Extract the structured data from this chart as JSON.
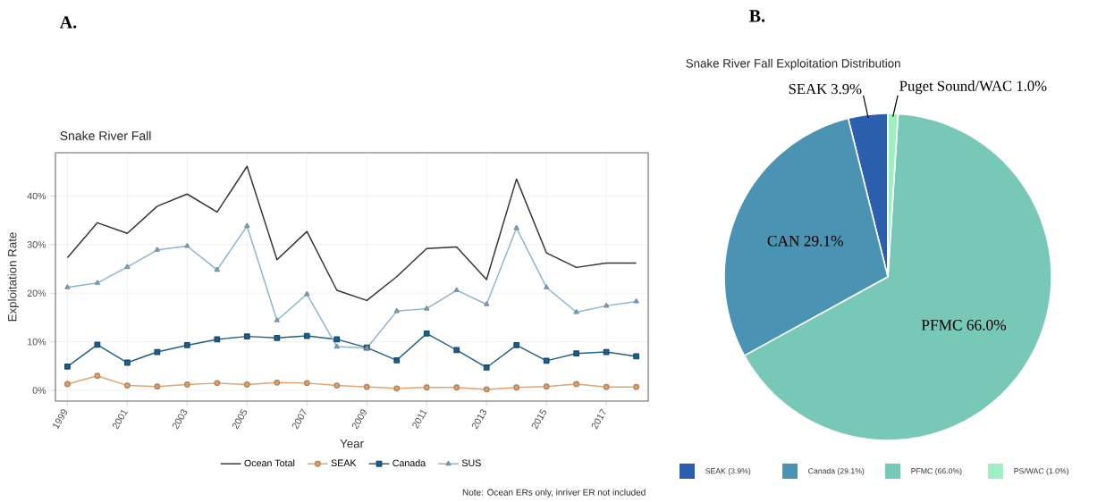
{
  "chart_data": [
    {
      "type": "line",
      "title": "Snake River Fall",
      "xlabel": "Year",
      "ylabel": "Exploitation Rate",
      "annotations": [
        "A.",
        "Note: Ocean ERs only, inriver ER not included"
      ],
      "x": [
        1999,
        2000,
        2001,
        2002,
        2003,
        2004,
        2005,
        2006,
        2007,
        2008,
        2009,
        2010,
        2011,
        2012,
        2013,
        2014,
        2015,
        2016,
        2017,
        2018
      ],
      "series": [
        {
          "name": "Ocean Total",
          "color": "#333333",
          "marker": "none",
          "values": [
            27.3,
            34.5,
            32.3,
            37.9,
            40.4,
            36.7,
            46.1,
            26.9,
            32.7,
            20.6,
            18.5,
            23.4,
            29.2,
            29.5,
            22.8,
            43.5,
            28.3,
            25.3,
            26.2,
            26.2
          ]
        },
        {
          "name": "SEAK",
          "color": "#e0a36e",
          "marker": "circle",
          "values": [
            1.3,
            3.0,
            1.0,
            0.8,
            1.2,
            1.5,
            1.2,
            1.6,
            1.5,
            1.0,
            0.7,
            0.4,
            0.6,
            0.6,
            0.2,
            0.6,
            0.8,
            1.3,
            0.7,
            0.7
          ]
        },
        {
          "name": "Canada",
          "color": "#1f5f8b",
          "marker": "square",
          "values": [
            4.9,
            9.4,
            5.7,
            7.9,
            9.3,
            10.5,
            11.1,
            10.8,
            11.2,
            10.5,
            8.8,
            6.2,
            11.7,
            8.3,
            4.7,
            9.3,
            6.1,
            7.6,
            7.9,
            7.0
          ]
        },
        {
          "name": "SUS",
          "color": "#8ab4cf",
          "marker": "triangle",
          "values": [
            21.2,
            22.1,
            25.4,
            28.9,
            29.7,
            24.8,
            33.8,
            14.4,
            19.8,
            9.0,
            8.7,
            16.3,
            16.8,
            20.6,
            17.7,
            33.4,
            21.2,
            16.1,
            17.4,
            18.3
          ]
        }
      ],
      "xlim": [
        1998.6,
        2018.4
      ],
      "ylim": [
        -2.2,
        48.9
      ],
      "xticks": [
        1999,
        2001,
        2003,
        2005,
        2007,
        2009,
        2011,
        2013,
        2015,
        2017
      ],
      "yticks": [
        {
          "value": 0,
          "label": "0%"
        },
        {
          "value": 10,
          "label": "10%"
        },
        {
          "value": 20,
          "label": "20%"
        },
        {
          "value": 30,
          "label": "30%"
        },
        {
          "value": 40,
          "label": "40%"
        }
      ],
      "grid": true,
      "legend": "bottom"
    },
    {
      "type": "pie",
      "title": "Snake River Fall Exploitation Distribution",
      "annotations": [
        "B."
      ],
      "categories": [
        "SEAK (3.9%)",
        "Canada (29.1%)",
        "PFMC (66.0%)",
        "PS/WAC (1.0%)"
      ],
      "values": [
        3.9,
        29.1,
        66.0,
        1.0
      ],
      "colors": [
        "#2b5fad",
        "#4a93b3",
        "#78c8b7",
        "#9ef0c0"
      ],
      "value_labels": [
        "SEAK 3.9%",
        "CAN 29.1%",
        "PFMC 66.0%",
        "Puget Sound/WAC 1.0%"
      ],
      "legend": "bottom"
    }
  ]
}
